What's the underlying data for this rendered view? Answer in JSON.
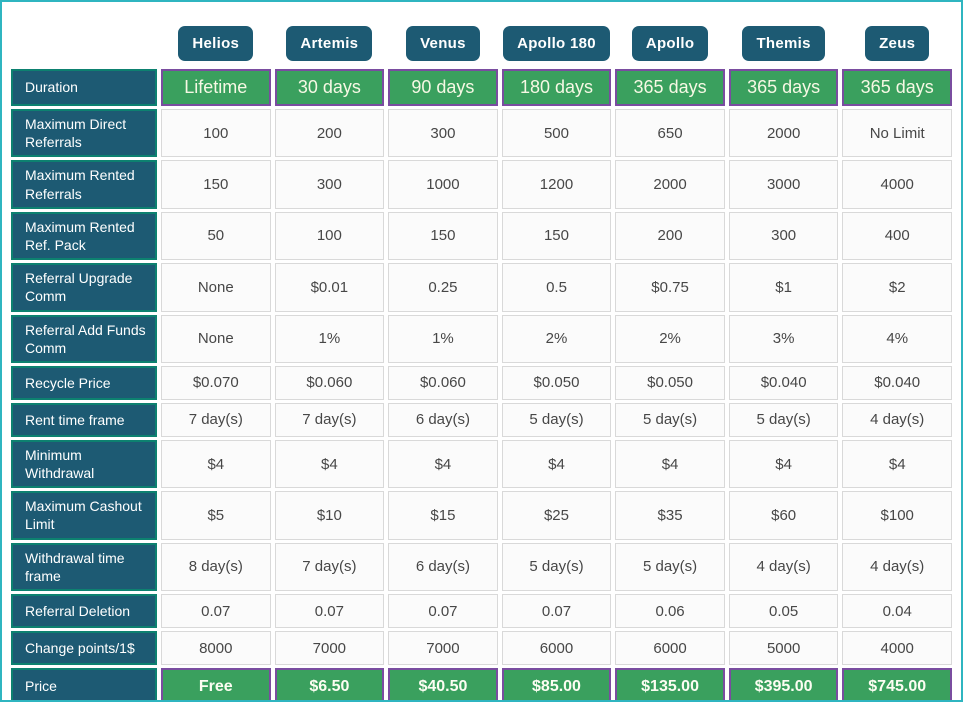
{
  "table": {
    "plans": [
      "Helios",
      "Artemis",
      "Venus",
      "Apollo 180",
      "Apollo",
      "Themis",
      "Zeus"
    ],
    "rows": [
      {
        "label": "Duration",
        "type": "green",
        "values": [
          "Lifetime",
          "30 days",
          "90 days",
          "180 days",
          "365 days",
          "365 days",
          "365 days"
        ]
      },
      {
        "label": "Maximum Direct Referrals",
        "type": "normal",
        "values": [
          "100",
          "200",
          "300",
          "500",
          "650",
          "2000",
          "No Limit"
        ]
      },
      {
        "label": "Maximum Rented Referrals",
        "type": "normal",
        "values": [
          "150",
          "300",
          "1000",
          "1200",
          "2000",
          "3000",
          "4000"
        ]
      },
      {
        "label": "Maximum Rented Ref. Pack",
        "type": "normal",
        "values": [
          "50",
          "100",
          "150",
          "150",
          "200",
          "300",
          "400"
        ]
      },
      {
        "label": "Referral Upgrade Comm",
        "type": "normal",
        "values": [
          "None",
          "$0.01",
          "0.25",
          "0.5",
          "$0.75",
          "$1",
          "$2"
        ]
      },
      {
        "label": "Referral Add Funds Comm",
        "type": "normal",
        "values": [
          "None",
          "1%",
          "1%",
          "2%",
          "2%",
          "3%",
          "4%"
        ]
      },
      {
        "label": "Recycle Price",
        "type": "normal",
        "values": [
          "$0.070",
          "$0.060",
          "$0.060",
          "$0.050",
          "$0.050",
          "$0.040",
          "$0.040"
        ]
      },
      {
        "label": "Rent time frame",
        "type": "normal",
        "values": [
          "7 day(s)",
          "7 day(s)",
          "6 day(s)",
          "5 day(s)",
          "5 day(s)",
          "5 day(s)",
          "4 day(s)"
        ]
      },
      {
        "label": "Minimum Withdrawal",
        "type": "normal",
        "values": [
          "$4",
          "$4",
          "$4",
          "$4",
          "$4",
          "$4",
          "$4"
        ]
      },
      {
        "label": "Maximum Cashout Limit",
        "type": "normal",
        "values": [
          "$5",
          "$10",
          "$15",
          "$25",
          "$35",
          "$60",
          "$100"
        ]
      },
      {
        "label": "Withdrawal time frame",
        "type": "normal",
        "values": [
          "8 day(s)",
          "7 day(s)",
          "6 day(s)",
          "5 day(s)",
          "5 day(s)",
          "4 day(s)",
          "4 day(s)"
        ]
      },
      {
        "label": "Referral Deletion",
        "type": "normal",
        "values": [
          "0.07",
          "0.07",
          "0.07",
          "0.07",
          "0.06",
          "0.05",
          "0.04"
        ]
      },
      {
        "label": "Change points/1$",
        "type": "normal",
        "values": [
          "8000",
          "7000",
          "7000",
          "6000",
          "6000",
          "5000",
          "4000"
        ]
      },
      {
        "label": "Price",
        "type": "green",
        "values": [
          "Free",
          "$6.50",
          "$40.50",
          "$85.00",
          "$135.00",
          "$395.00",
          "$745.00"
        ]
      }
    ]
  },
  "colors": {
    "frame_border": "#2fb5c0",
    "header_fill": "#1d5a73",
    "row_header_border": "#0d8170",
    "green_fill": "#3aa05e",
    "green_border": "#7a4da0",
    "cell_bg": "#fbfbfb",
    "cell_border": "#d9d9d9"
  }
}
